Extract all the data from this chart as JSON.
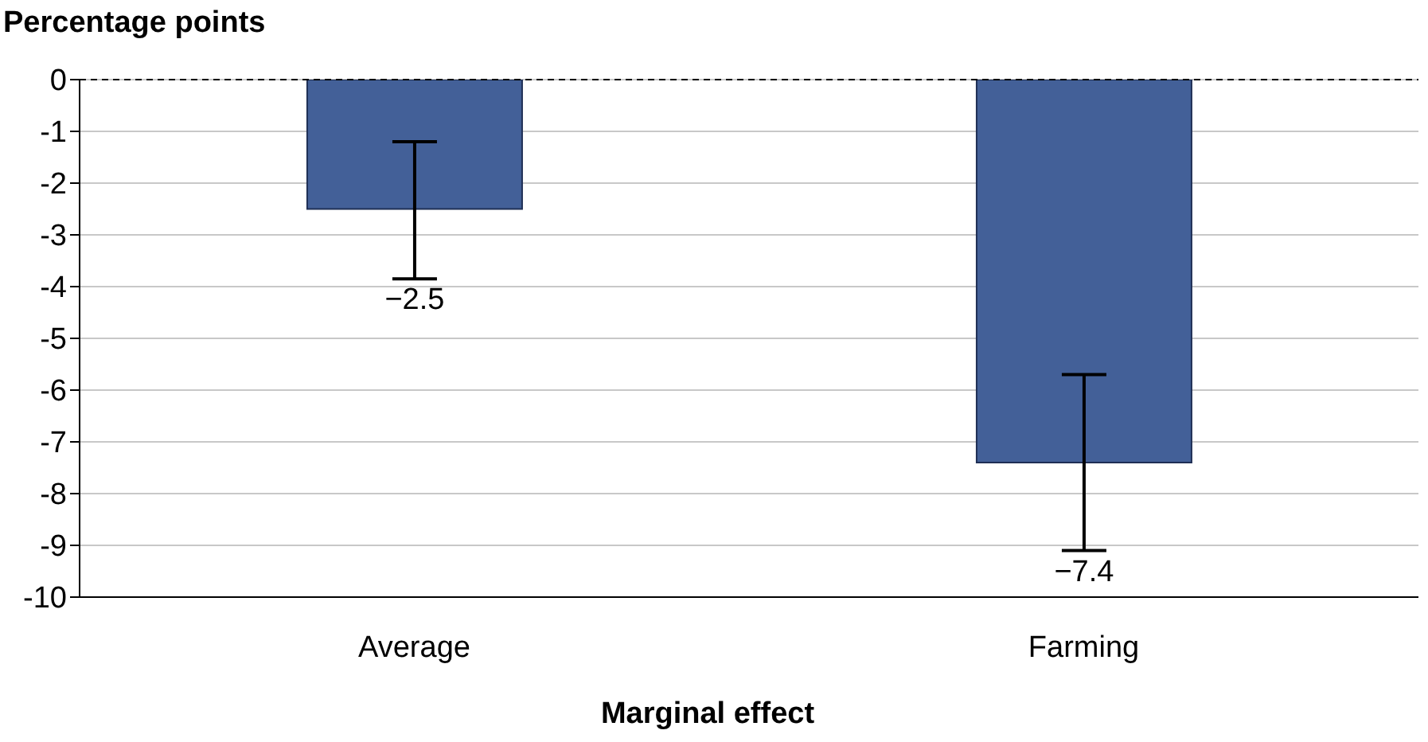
{
  "chart_data": {
    "type": "bar",
    "ylabel": "Percentage points",
    "xlabel": "Marginal effect",
    "categories": [
      "Average",
      "Farming"
    ],
    "values": [
      -2.5,
      -7.4
    ],
    "color": "#436098",
    "errors": [
      [
        -3.85,
        -1.2
      ],
      [
        -9.1,
        -5.7
      ]
    ],
    "value_labels": [
      "−2.5",
      "−7.4"
    ],
    "ylim": [
      -10,
      0
    ],
    "yticks": [
      -10,
      -9,
      -8,
      -7,
      -6,
      -5,
      -4,
      -3,
      -2,
      -1,
      0
    ],
    "grid": "y",
    "ref_lines": [
      {
        "axis": "y",
        "value": 0,
        "line_style": "dashed",
        "color": "#000000"
      }
    ]
  }
}
